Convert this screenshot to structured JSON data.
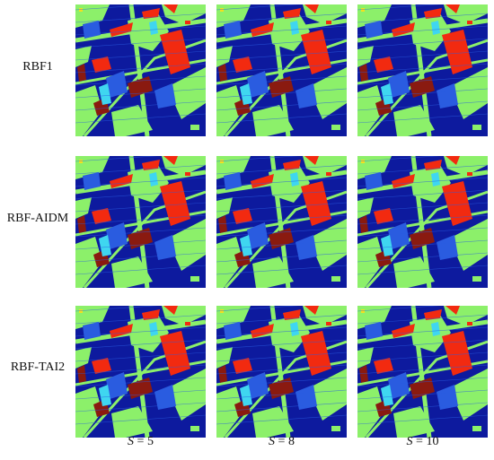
{
  "figure": {
    "rows": [
      {
        "label": "RBF1"
      },
      {
        "label": "RBF-AIDM"
      },
      {
        "label": "RBF-TAI2"
      }
    ],
    "columns": [
      {
        "var": "S",
        "text": " = 5"
      },
      {
        "var": "S",
        "text": " = 8"
      },
      {
        "var": "S",
        "text": " = 10"
      }
    ],
    "classification_colors": {
      "background": "#0d1a9e",
      "light_green": "#8cf06a",
      "red": "#f22a10",
      "dark_red": "#8a1a10",
      "medium_blue": "#2a5ce0",
      "cyan": "#3fd6f0",
      "yellow": "#f2e020"
    }
  }
}
